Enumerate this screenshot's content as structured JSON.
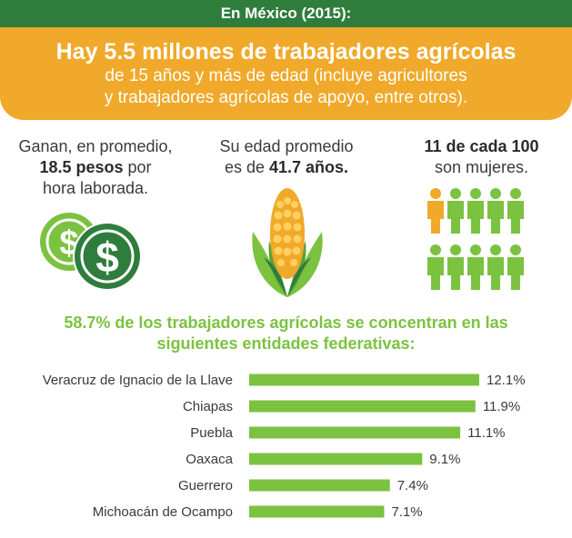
{
  "header": {
    "title": "En México (2015):"
  },
  "banner": {
    "headline": "Hay 5.5 millones de trabajadores agrícolas",
    "line1": "de 15 años y más de edad (incluye agricultores",
    "line2": "y trabajadores agrícolas de apoyo, entre otros)."
  },
  "stats": {
    "wage": {
      "pre": "Ganan, en promedio,",
      "bold": "18.5 pesos",
      "post": " por",
      "line3": "hora laborada."
    },
    "age": {
      "line1": "Su edad promedio",
      "pre": "es de ",
      "bold": "41.7 años."
    },
    "women": {
      "bold": "11 de cada 100",
      "line2": "son mujeres."
    }
  },
  "icons": {
    "coins": "dollar-coins-icon",
    "corn": "corn-icon",
    "people": "people-icon"
  },
  "colors": {
    "green_dark": "#2f7d3c",
    "orange": "#f0a92a",
    "green_bar": "#7cc241",
    "orange_person": "#f0a92a"
  },
  "chart_data": {
    "type": "bar",
    "orientation": "horizontal",
    "title": "58.7% de los trabajadores agrícolas se concentran en las siguientes entidades federativas:",
    "title_line1": "58.7% de los trabajadores agrícolas se concentran en las",
    "title_line2": "siguientes entidades federativas:",
    "categories": [
      "Veracruz de Ignacio de la Llave",
      "Chiapas",
      "Puebla",
      "Oaxaca",
      "Guerrero",
      "Michoacán de Ocampo"
    ],
    "values": [
      12.1,
      11.9,
      11.1,
      9.1,
      7.4,
      7.1
    ],
    "value_labels": [
      "12.1%",
      "11.9%",
      "11.1%",
      "9.1%",
      "7.4%",
      "7.1%"
    ],
    "unit": "%",
    "grid": false
  }
}
